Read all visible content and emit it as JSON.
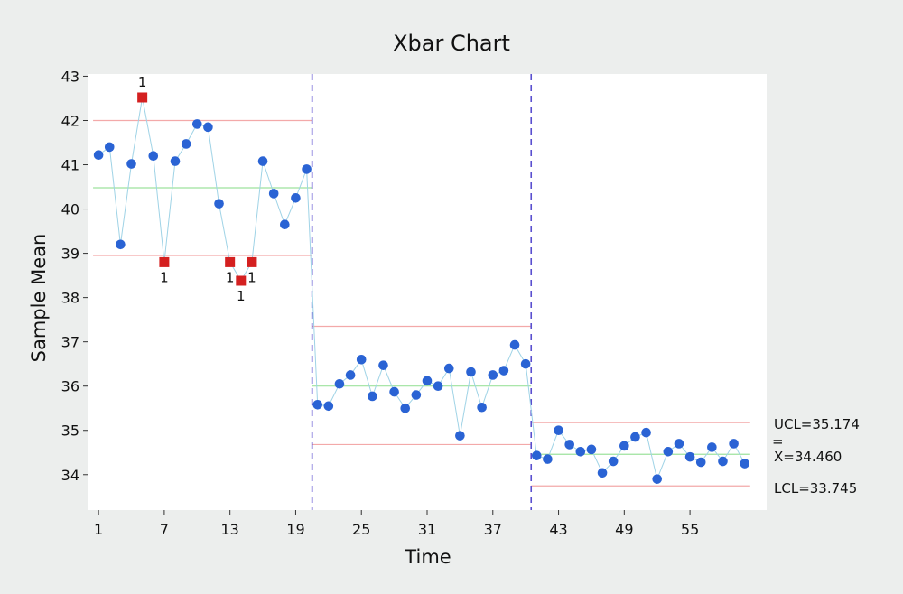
{
  "chart_data": {
    "type": "line",
    "title": "Xbar Chart",
    "xlabel": "Time",
    "ylabel": "Sample Mean",
    "xlim": [
      0,
      62
    ],
    "ylim": [
      33.2,
      43.05
    ],
    "xticks": [
      1,
      7,
      13,
      19,
      25,
      31,
      37,
      43,
      49,
      55
    ],
    "yticks": [
      34,
      35,
      36,
      37,
      38,
      39,
      40,
      41,
      42,
      43
    ],
    "stage_boundaries": [
      20.5,
      40.5
    ],
    "stages": [
      {
        "x_start": 0.5,
        "x_end": 20.5,
        "ucl": 42.0,
        "center": 40.48,
        "lcl": 38.95
      },
      {
        "x_start": 20.5,
        "x_end": 40.5,
        "ucl": 37.35,
        "center": 36.0,
        "lcl": 34.68
      },
      {
        "x_start": 40.5,
        "x_end": 60.5,
        "ucl": 35.174,
        "center": 34.46,
        "lcl": 33.745
      }
    ],
    "limit_labels": {
      "ucl": "UCL=35.174",
      "center_bar": "=",
      "center": "X=34.460",
      "lcl": "LCL=33.745"
    },
    "series": [
      {
        "values": [
          41.22,
          41.4,
          39.2,
          41.02,
          42.52,
          41.2,
          38.8,
          41.08,
          41.47,
          41.92,
          41.85,
          40.12,
          38.8,
          38.38,
          38.8,
          41.08,
          40.35,
          39.65,
          40.25,
          40.9,
          35.58,
          35.55,
          36.05,
          36.25,
          36.6,
          35.77,
          36.47,
          35.87,
          35.5,
          35.8,
          36.12,
          36.0,
          36.4,
          34.88,
          36.32,
          35.52,
          36.25,
          36.35,
          36.93,
          36.5,
          34.43,
          34.35,
          35.0,
          34.68,
          34.52,
          34.57,
          34.04,
          34.3,
          34.65,
          34.85,
          34.95,
          33.9,
          34.52,
          34.7,
          34.4,
          34.28,
          34.62,
          34.3,
          34.7,
          34.25
        ]
      }
    ],
    "out_of_control": [
      {
        "x": 5,
        "label": "1",
        "position": "above"
      },
      {
        "x": 7,
        "label": "1",
        "position": "below"
      },
      {
        "x": 13,
        "label": "1",
        "position": "below"
      },
      {
        "x": 14,
        "label": "1",
        "position": "below"
      },
      {
        "x": 15,
        "label": "1",
        "position": "below"
      }
    ],
    "colors": {
      "point": "#2a63d4",
      "flag_point": "#d42020",
      "connector": "#9fd3e6",
      "ucl_lcl": "#f3a9a9",
      "center": "#9ee29e",
      "stage_divider": "#5a4fcf",
      "plot_bg": "#ffffff",
      "outer_bg": "#eceeed"
    },
    "grid": false
  }
}
